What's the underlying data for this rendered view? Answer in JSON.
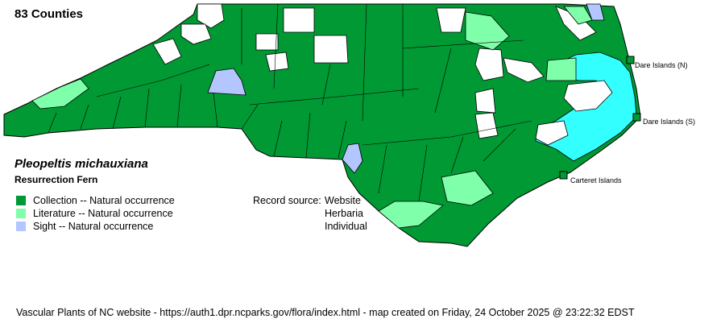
{
  "header": {
    "county_count": "83 Counties"
  },
  "species": {
    "scientific_name": "Pleopeltis michauxiana",
    "common_name": "Resurrection Fern"
  },
  "legend": [
    {
      "label": "Collection -- Natural occurrence",
      "color": "#009933"
    },
    {
      "label": "Literature -- Natural occurrence",
      "color": "#80FFAA"
    },
    {
      "label": "Sight -- Natural occurrence",
      "color": "#B3C6FF"
    }
  ],
  "record_source": {
    "label": "Record source:",
    "values": [
      "Website",
      "Herbaria",
      "Individual"
    ]
  },
  "map": {
    "water_color": "#33FFFF",
    "islands": [
      "Dare Islands (N)",
      "Dare Islands (S)",
      "Carteret Islands"
    ]
  },
  "footer": "Vascular Plants of NC website - https://auth1.dpr.ncparks.gov/flora/index.html - map created on Friday, 24 October 2025 @ 23:22:32 EDST"
}
